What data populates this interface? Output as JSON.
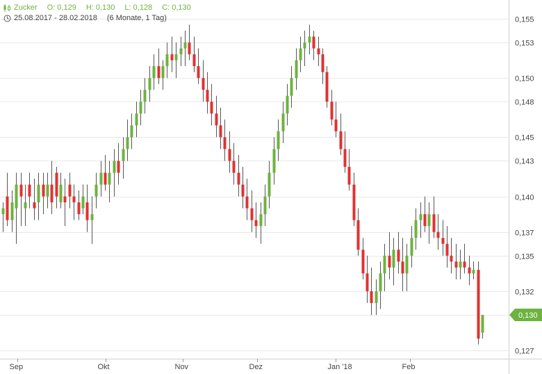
{
  "header": {
    "instrument": "Zucker",
    "open_label": "O: 0,129",
    "high_label": "H: 0,130",
    "low_label": "L: 0,128",
    "close_label": "C: 0,130",
    "date_range": "25.08.2017 - 28.02.2018",
    "period": "(6 Monate, 1 Tag)",
    "header_icon": "candlestick-chart-icon",
    "period_icon": "clock-icon"
  },
  "colors": {
    "up": "#6db33f",
    "down": "#e03232",
    "wick": "#555555",
    "grid": "#e8e8e8",
    "axis_text": "#444444",
    "last_price_bg": "#6db33f"
  },
  "chart_data": {
    "type": "candlestick",
    "x_labels": [
      "Sep",
      "Okt",
      "Nov",
      "Dez",
      "Jan '18",
      "Feb"
    ],
    "ylim": [
      0.1263,
      0.156
    ],
    "y_ticks": [
      "0,155",
      "0,153",
      "0,150",
      "0,148",
      "0,145",
      "0,143",
      "0,140",
      "0,137",
      "0,135",
      "0,132",
      "0,130",
      "0,127"
    ],
    "last_price": "0,130",
    "grid": true,
    "ohlc": [
      [
        0.1385,
        0.1395,
        0.137,
        0.139
      ],
      [
        0.14,
        0.142,
        0.1375,
        0.138
      ],
      [
        0.138,
        0.1405,
        0.137,
        0.1395
      ],
      [
        0.139,
        0.142,
        0.136,
        0.141
      ],
      [
        0.141,
        0.142,
        0.1375,
        0.14
      ],
      [
        0.139,
        0.141,
        0.1375,
        0.1395
      ],
      [
        0.141,
        0.142,
        0.139,
        0.14
      ],
      [
        0.1395,
        0.1415,
        0.138,
        0.139
      ],
      [
        0.1395,
        0.142,
        0.138,
        0.141
      ],
      [
        0.141,
        0.142,
        0.1385,
        0.14
      ],
      [
        0.14,
        0.142,
        0.139,
        0.141
      ],
      [
        0.141,
        0.143,
        0.1385,
        0.1395
      ],
      [
        0.142,
        0.1425,
        0.139,
        0.14
      ],
      [
        0.1395,
        0.142,
        0.139,
        0.141
      ],
      [
        0.14,
        0.1415,
        0.1375,
        0.1395
      ],
      [
        0.141,
        0.142,
        0.139,
        0.14
      ],
      [
        0.14,
        0.141,
        0.138,
        0.1395
      ],
      [
        0.1395,
        0.1405,
        0.138,
        0.1385
      ],
      [
        0.139,
        0.141,
        0.1385,
        0.14
      ],
      [
        0.1395,
        0.141,
        0.137,
        0.138
      ],
      [
        0.138,
        0.14,
        0.136,
        0.1385
      ],
      [
        0.14,
        0.142,
        0.139,
        0.141
      ],
      [
        0.141,
        0.143,
        0.14,
        0.142
      ],
      [
        0.142,
        0.1435,
        0.1405,
        0.141
      ],
      [
        0.141,
        0.143,
        0.1395,
        0.142
      ],
      [
        0.142,
        0.144,
        0.14,
        0.143
      ],
      [
        0.143,
        0.1445,
        0.141,
        0.142
      ],
      [
        0.143,
        0.145,
        0.1415,
        0.144
      ],
      [
        0.144,
        0.1465,
        0.143,
        0.145
      ],
      [
        0.145,
        0.147,
        0.144,
        0.146
      ],
      [
        0.146,
        0.148,
        0.145,
        0.147
      ],
      [
        0.147,
        0.149,
        0.146,
        0.148
      ],
      [
        0.148,
        0.15,
        0.147,
        0.149
      ],
      [
        0.149,
        0.151,
        0.148,
        0.15
      ],
      [
        0.15,
        0.152,
        0.149,
        0.151
      ],
      [
        0.151,
        0.1525,
        0.1495,
        0.15
      ],
      [
        0.15,
        0.1515,
        0.149,
        0.151
      ],
      [
        0.151,
        0.153,
        0.15,
        0.152
      ],
      [
        0.152,
        0.1535,
        0.1505,
        0.1515
      ],
      [
        0.1515,
        0.153,
        0.15,
        0.152
      ],
      [
        0.152,
        0.1535,
        0.151,
        0.1525
      ],
      [
        0.1525,
        0.154,
        0.151,
        0.153
      ],
      [
        0.153,
        0.1545,
        0.1515,
        0.152
      ],
      [
        0.152,
        0.1535,
        0.1505,
        0.151
      ],
      [
        0.151,
        0.1525,
        0.1495,
        0.15
      ],
      [
        0.15,
        0.1515,
        0.148,
        0.149
      ],
      [
        0.149,
        0.1505,
        0.147,
        0.148
      ],
      [
        0.148,
        0.1495,
        0.146,
        0.147
      ],
      [
        0.147,
        0.1485,
        0.145,
        0.146
      ],
      [
        0.146,
        0.1475,
        0.144,
        0.145
      ],
      [
        0.145,
        0.1465,
        0.143,
        0.144
      ],
      [
        0.144,
        0.1455,
        0.142,
        0.143
      ],
      [
        0.143,
        0.1445,
        0.141,
        0.142
      ],
      [
        0.142,
        0.1435,
        0.14,
        0.141
      ],
      [
        0.141,
        0.1425,
        0.139,
        0.14
      ],
      [
        0.14,
        0.1415,
        0.138,
        0.139
      ],
      [
        0.139,
        0.1405,
        0.137,
        0.138
      ],
      [
        0.138,
        0.1395,
        0.1365,
        0.1375
      ],
      [
        0.1375,
        0.1395,
        0.136,
        0.1385
      ],
      [
        0.1385,
        0.141,
        0.1375,
        0.14
      ],
      [
        0.14,
        0.143,
        0.139,
        0.142
      ],
      [
        0.142,
        0.145,
        0.141,
        0.144
      ],
      [
        0.144,
        0.1465,
        0.143,
        0.1455
      ],
      [
        0.1455,
        0.148,
        0.1445,
        0.147
      ],
      [
        0.147,
        0.1495,
        0.146,
        0.1485
      ],
      [
        0.1485,
        0.151,
        0.1475,
        0.15
      ],
      [
        0.15,
        0.1525,
        0.149,
        0.1515
      ],
      [
        0.1515,
        0.1535,
        0.1505,
        0.1525
      ],
      [
        0.1525,
        0.154,
        0.151,
        0.153
      ],
      [
        0.153,
        0.1545,
        0.152,
        0.1535
      ],
      [
        0.1535,
        0.154,
        0.1515,
        0.1525
      ],
      [
        0.1525,
        0.1535,
        0.151,
        0.152
      ],
      [
        0.152,
        0.1525,
        0.1495,
        0.1505
      ],
      [
        0.1505,
        0.151,
        0.1475,
        0.148
      ],
      [
        0.148,
        0.149,
        0.146,
        0.1465
      ],
      [
        0.1465,
        0.148,
        0.145,
        0.1455
      ],
      [
        0.1455,
        0.147,
        0.1435,
        0.144
      ],
      [
        0.144,
        0.1455,
        0.142,
        0.1425
      ],
      [
        0.1425,
        0.144,
        0.1405,
        0.141
      ],
      [
        0.141,
        0.142,
        0.1375,
        0.138
      ],
      [
        0.138,
        0.139,
        0.135,
        0.1355
      ],
      [
        0.1355,
        0.1365,
        0.133,
        0.1335
      ],
      [
        0.1335,
        0.135,
        0.131,
        0.132
      ],
      [
        0.132,
        0.134,
        0.13,
        0.131
      ],
      [
        0.131,
        0.133,
        0.13,
        0.132
      ],
      [
        0.132,
        0.1345,
        0.1305,
        0.1335
      ],
      [
        0.1335,
        0.136,
        0.132,
        0.135
      ],
      [
        0.135,
        0.137,
        0.133,
        0.134
      ],
      [
        0.134,
        0.1365,
        0.1325,
        0.1355
      ],
      [
        0.1355,
        0.137,
        0.1335,
        0.1345
      ],
      [
        0.1345,
        0.1365,
        0.132,
        0.1335
      ],
      [
        0.1335,
        0.136,
        0.132,
        0.135
      ],
      [
        0.135,
        0.1375,
        0.134,
        0.1365
      ],
      [
        0.1365,
        0.139,
        0.1355,
        0.138
      ],
      [
        0.138,
        0.1395,
        0.1365,
        0.1385
      ],
      [
        0.1385,
        0.14,
        0.137,
        0.1375
      ],
      [
        0.1375,
        0.1395,
        0.136,
        0.1385
      ],
      [
        0.1385,
        0.14,
        0.1365,
        0.137
      ],
      [
        0.137,
        0.1385,
        0.1355,
        0.1365
      ],
      [
        0.1365,
        0.138,
        0.135,
        0.136
      ],
      [
        0.136,
        0.1375,
        0.134,
        0.135
      ],
      [
        0.135,
        0.1365,
        0.1335,
        0.1345
      ],
      [
        0.1345,
        0.136,
        0.133,
        0.134
      ],
      [
        0.134,
        0.1355,
        0.133,
        0.1345
      ],
      [
        0.1345,
        0.136,
        0.1335,
        0.134
      ],
      [
        0.134,
        0.135,
        0.1325,
        0.1335
      ],
      [
        0.1335,
        0.1345,
        0.133,
        0.1338
      ],
      [
        0.1338,
        0.1345,
        0.1275,
        0.128
      ],
      [
        0.1285,
        0.13,
        0.128,
        0.13
      ]
    ]
  }
}
